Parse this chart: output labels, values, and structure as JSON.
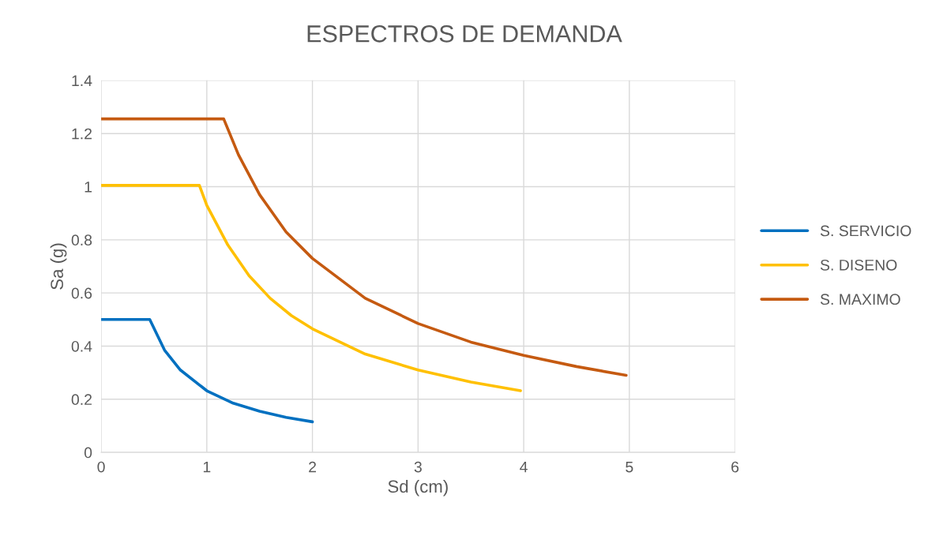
{
  "chart_data": {
    "type": "line",
    "title": "ESPECTROS DE DEMANDA",
    "xlabel": "Sd (cm)",
    "ylabel": "Sa (g)",
    "xlim": [
      0,
      6
    ],
    "xticks": [
      0,
      1,
      2,
      3,
      4,
      5,
      6
    ],
    "ylim": [
      0,
      1.4
    ],
    "yticks": [
      0,
      0.2,
      0.4,
      0.6,
      0.8,
      1,
      1.2,
      1.4
    ],
    "grid": true,
    "legend": "right",
    "marker": "none",
    "line_style": "solid",
    "series": [
      {
        "name": "S. SERVICIO",
        "color": "#0070c0",
        "x": [
          0,
          0.46,
          0.6,
          0.75,
          1.0,
          1.25,
          1.5,
          1.75,
          2.0
        ],
        "values": [
          0.5,
          0.5,
          0.385,
          0.31,
          0.232,
          0.185,
          0.155,
          0.132,
          0.115
        ]
      },
      {
        "name": "S. DISENO",
        "color": "#ffc000",
        "x": [
          0,
          0.93,
          1.0,
          1.2,
          1.4,
          1.6,
          1.8,
          2.0,
          2.5,
          3.0,
          3.5,
          3.97
        ],
        "values": [
          1.005,
          1.005,
          0.93,
          0.78,
          0.665,
          0.58,
          0.515,
          0.465,
          0.37,
          0.31,
          0.265,
          0.232
        ]
      },
      {
        "name": "S. MAXIMO",
        "color": "#c55a11",
        "x": [
          0,
          1.16,
          1.3,
          1.5,
          1.75,
          2.0,
          2.5,
          3.0,
          3.5,
          4.0,
          4.5,
          4.97
        ],
        "values": [
          1.255,
          1.255,
          1.12,
          0.97,
          0.83,
          0.73,
          0.58,
          0.485,
          0.415,
          0.365,
          0.323,
          0.29
        ]
      }
    ]
  }
}
